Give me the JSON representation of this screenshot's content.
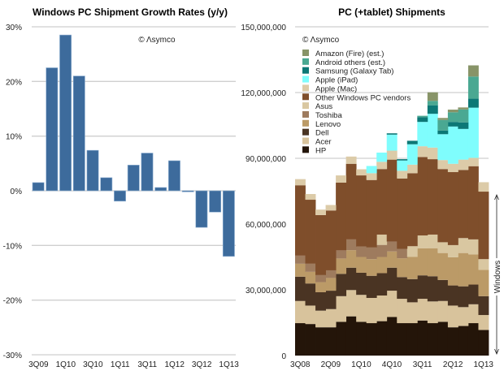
{
  "chart_data": [
    {
      "type": "bar",
      "title": "Windows PC Shipment Growth Rates (y/y)",
      "copyright": "© Λsymco",
      "xlabel": "",
      "ylabel": "",
      "ylim": [
        -30,
        30
      ],
      "yticks": [
        30,
        20,
        10,
        0,
        -10,
        -20,
        -30
      ],
      "ytick_labels": [
        "30%",
        "20%",
        "10%",
        "0%",
        "-10%",
        "-20%",
        "-30%"
      ],
      "categories": [
        "3Q09",
        "4Q09",
        "1Q10",
        "2Q10",
        "3Q10",
        "4Q10",
        "1Q11",
        "2Q11",
        "3Q11",
        "4Q11",
        "1Q12",
        "2Q12",
        "3Q12",
        "4Q12",
        "1Q13"
      ],
      "xtick_labels": [
        "3Q09",
        "1Q10",
        "3Q10",
        "1Q11",
        "3Q11",
        "1Q12",
        "3Q12",
        "1Q13"
      ],
      "values": [
        1.5,
        22.5,
        28.5,
        21.0,
        7.4,
        2.4,
        -1.9,
        4.7,
        6.9,
        0.6,
        5.5,
        -0.2,
        -6.7,
        -3.9,
        -12.0
      ],
      "color": "#3d6b9c",
      "grid": true
    },
    {
      "type": "area",
      "stacked": true,
      "title": "PC (+tablet) Shipments",
      "copyright": "© Λsymco",
      "ylim": [
        0,
        150000000
      ],
      "yticks": [
        0,
        30000000,
        60000000,
        90000000,
        120000000,
        150000000
      ],
      "ytick_labels": [
        "0",
        "30,000,000",
        "60,000,000",
        "90,000,000",
        "120,000,000",
        "150,000,000"
      ],
      "units": "millions",
      "categories": [
        "3Q08",
        "4Q08",
        "1Q09",
        "2Q09",
        "3Q09",
        "4Q09",
        "1Q10",
        "2Q10",
        "3Q10",
        "4Q10",
        "1Q11",
        "2Q11",
        "3Q11",
        "4Q11",
        "1Q12",
        "2Q12",
        "3Q12",
        "4Q12",
        "1Q13"
      ],
      "xtick_labels": [
        "3Q08",
        "2Q09",
        "1Q10",
        "4Q10",
        "3Q11",
        "2Q12",
        "1Q13"
      ],
      "annotation": "Windows",
      "legend_position": "top-left",
      "series": [
        {
          "name": "HP",
          "color": "#241509",
          "values": [
            14.8,
            14.4,
            12.9,
            12.9,
            15.4,
            17.9,
            15.4,
            14.8,
            15.7,
            17.6,
            14.8,
            14.8,
            16.0,
            14.8,
            15.4,
            12.9,
            13.5,
            14.8,
            11.7
          ]
        },
        {
          "name": "Acer",
          "color": "#d8c39c",
          "values": [
            10.1,
            8.4,
            7.6,
            8.3,
            11.7,
            12.0,
            12.3,
            11.5,
            11.7,
            12.0,
            11.1,
            9.5,
            9.9,
            9.9,
            9.5,
            9.9,
            8.6,
            8.6,
            6.8
          ]
        },
        {
          "name": "Dell",
          "color": "#4a3423",
          "values": [
            11.1,
            10.1,
            8.4,
            8.4,
            10.2,
            10.2,
            10.1,
            10.1,
            10.2,
            10.5,
            9.9,
            10.6,
            10.7,
            11.5,
            9.6,
            9.2,
            9.5,
            9.0,
            8.6
          ]
        },
        {
          "name": "Lenovo",
          "color": "#bb9a67",
          "values": [
            5.9,
            5.3,
            4.6,
            5.8,
            7.0,
            8.0,
            7.2,
            7.6,
            7.4,
            7.4,
            8.6,
            10.1,
            12.3,
            12.8,
            12.3,
            12.9,
            15.2,
            13.8,
            12.0
          ]
        },
        {
          "name": "Toshiba",
          "color": "#9e7b5e",
          "values": [
            3.7,
            3.7,
            3.2,
            3.5,
            3.7,
            4.9,
            4.7,
            5.3,
            5.5,
            4.5,
            4.3,
            0,
            0,
            0,
            0,
            0,
            0,
            0,
            0
          ]
        },
        {
          "name": "Asus",
          "color": "#d9c7a1",
          "values": [
            0,
            0,
            0,
            0,
            0,
            0,
            0,
            0,
            4.7,
            0,
            0,
            4.9,
            5.9,
            6.2,
            4.9,
            5.5,
            6.8,
            6.8,
            4.9
          ]
        },
        {
          "name": "Other Windows PC vendors",
          "color": "#7f4e2b",
          "values": [
            32.1,
            29.2,
            27.4,
            27.3,
            30.9,
            34.5,
            32.5,
            30.8,
            29.9,
            37.4,
            32.1,
            33.3,
            35.8,
            34.4,
            33.4,
            33.3,
            31.1,
            33.4,
            30.8
          ]
        },
        {
          "name": "Apple (Mac)",
          "color": "#dccba8",
          "values": [
            2.8,
            2.6,
            2.5,
            2.5,
            3.3,
            3.3,
            2.8,
            3.1,
            3.3,
            4.1,
            3.5,
            3.9,
            4.9,
            5.3,
            4.1,
            3.8,
            4.7,
            3.8,
            4.3
          ]
        },
        {
          "name": "Apple (iPad)",
          "color": "#7ffdfd",
          "values": [
            0,
            0,
            0,
            0,
            0,
            0,
            0,
            3.3,
            4.2,
            7.3,
            4.7,
            9.3,
            11.1,
            15.4,
            11.8,
            17.0,
            14.0,
            22.9,
            0
          ]
        },
        {
          "name": "Samsung (Galaxy Tab)",
          "color": "#0c7876",
          "values": [
            0,
            0,
            0,
            0,
            0,
            0,
            0,
            0,
            0,
            0.6,
            0.6,
            1.6,
            2.2,
            3.9,
            1.7,
            2.1,
            3.0,
            4.1,
            0
          ]
        },
        {
          "name": "Android others (est.)",
          "color": "#4aa892",
          "values": [
            0,
            0,
            0,
            0,
            0,
            0,
            0,
            0,
            0,
            0,
            0,
            0,
            0.6,
            2.0,
            4.8,
            4.4,
            5.9,
            10.1,
            0
          ]
        },
        {
          "name": "Amazon (Fire) (est.)",
          "color": "#889468",
          "values": [
            0,
            0,
            0,
            0,
            0,
            0,
            0,
            0,
            0,
            0,
            0,
            0,
            0,
            3.9,
            0.9,
            1.2,
            0.9,
            5.1,
            0
          ]
        }
      ],
      "grid": true
    }
  ]
}
